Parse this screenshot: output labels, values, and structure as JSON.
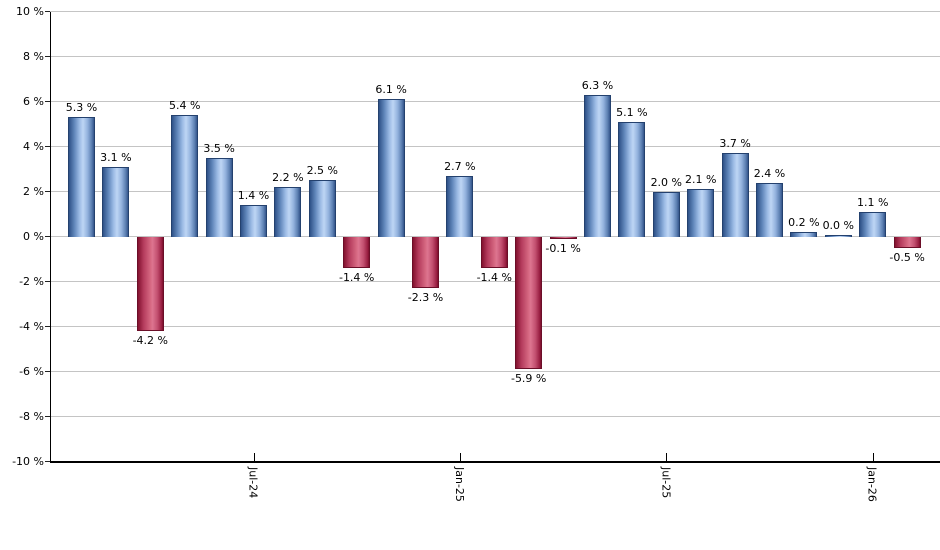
{
  "chart_data": {
    "type": "bar",
    "title": "",
    "xlabel": "",
    "ylabel": "",
    "unit": "%",
    "values": [
      5.3,
      3.1,
      -4.2,
      5.4,
      3.5,
      1.4,
      2.2,
      2.5,
      -1.4,
      6.1,
      -2.3,
      2.7,
      -1.4,
      -5.9,
      -0.1,
      6.3,
      5.1,
      2.0,
      2.1,
      3.7,
      2.4,
      0.2,
      0.0,
      1.1,
      -0.5
    ],
    "value_label_format": "{value} %",
    "x_ticks": [
      {
        "label": "Jul-24",
        "bar_index": 5
      },
      {
        "label": "Jan-25",
        "bar_index": 11
      },
      {
        "label": "Jul-25",
        "bar_index": 17
      },
      {
        "label": "Jan-26",
        "bar_index": 23
      }
    ],
    "y_ticks": [
      {
        "value": 10,
        "label": "10 %"
      },
      {
        "value": 8,
        "label": "8 %"
      },
      {
        "value": 6,
        "label": "6 %"
      },
      {
        "value": 4,
        "label": "4 %"
      },
      {
        "value": 2,
        "label": "2 %"
      },
      {
        "value": 0,
        "label": "0 %"
      },
      {
        "value": -2,
        "label": "-2 %"
      },
      {
        "value": -4,
        "label": "-4 %"
      },
      {
        "value": -6,
        "label": "-6 %"
      },
      {
        "value": -8,
        "label": "-8 %"
      },
      {
        "value": -10,
        "label": "-10 %"
      }
    ],
    "ylim": [
      -10,
      10
    ],
    "grid": true,
    "legend": "none",
    "colors": {
      "positive_bar": "#7ba0d0",
      "negative_bar": "#c23b5e",
      "gridline": "#c4c4c4",
      "axis": "#000000",
      "background": "#ffffff",
      "label_text": "#000000"
    }
  }
}
